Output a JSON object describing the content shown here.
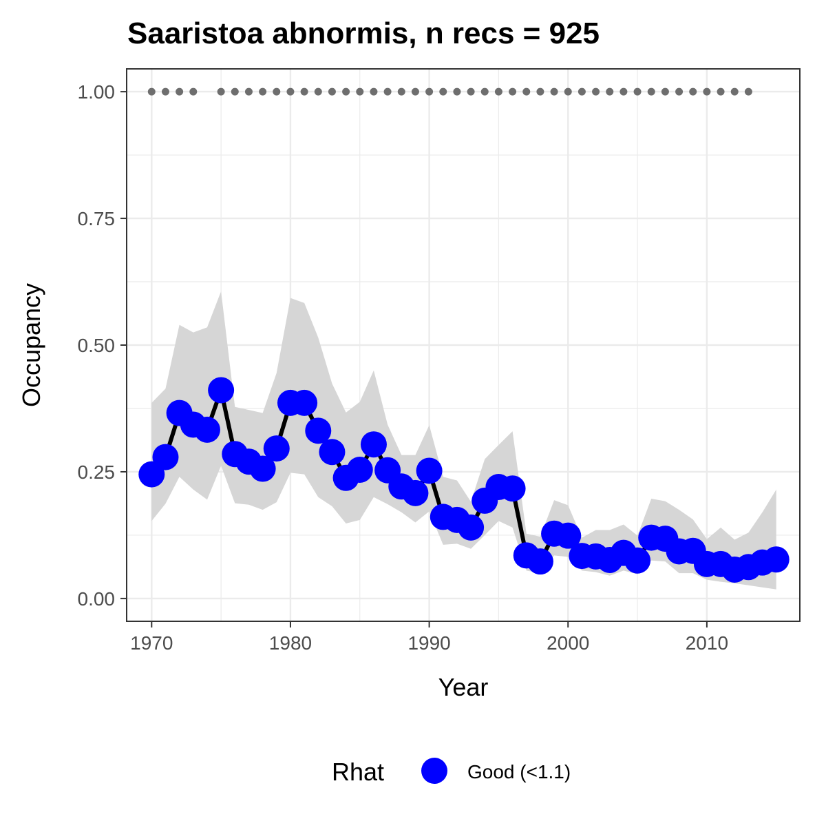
{
  "chart_data": {
    "type": "line",
    "title": "Saaristoa abnormis, n recs = 925",
    "xlabel": "Year",
    "ylabel": "Occupancy",
    "xlim": [
      1968.2,
      2016.7
    ],
    "ylim": [
      -0.045,
      1.045
    ],
    "x_ticks": [
      1970,
      1980,
      1990,
      2000,
      2010
    ],
    "x_tick_labels": [
      "1970",
      "1980",
      "1990",
      "2000",
      "2010"
    ],
    "y_ticks": [
      0,
      0.25,
      0.5,
      0.75,
      1.0
    ],
    "y_tick_labels": [
      "0.00",
      "0.25",
      "0.50",
      "0.75",
      "1.00"
    ],
    "grid": true,
    "legend": {
      "position": "bottom",
      "title": "Rhat",
      "entries": [
        {
          "label": "Good (<1.1)",
          "color": "#0000ff"
        }
      ]
    },
    "colors": {
      "points": "#0000ff",
      "line": "#000000",
      "ribbon": "#d6d6d6",
      "record_dots": "#6e6e6e",
      "grid": "#ebebeb",
      "panel_border": "#333333"
    },
    "series": [
      {
        "name": "Good (<1.1)",
        "x": [
          1970,
          1971,
          1972,
          1973,
          1974,
          1975,
          1976,
          1977,
          1978,
          1979,
          1980,
          1981,
          1982,
          1983,
          1984,
          1985,
          1986,
          1987,
          1988,
          1989,
          1990,
          1991,
          1992,
          1993,
          1994,
          1995,
          1996,
          1997,
          1998,
          1999,
          2000,
          2001,
          2002,
          2003,
          2004,
          2005,
          2006,
          2007,
          2008,
          2009,
          2010,
          2011,
          2012,
          2013,
          2014,
          2015
        ],
        "y": [
          0.245,
          0.279,
          0.366,
          0.343,
          0.333,
          0.411,
          0.285,
          0.27,
          0.256,
          0.296,
          0.386,
          0.386,
          0.331,
          0.289,
          0.238,
          0.254,
          0.304,
          0.253,
          0.221,
          0.208,
          0.252,
          0.161,
          0.155,
          0.14,
          0.193,
          0.22,
          0.217,
          0.085,
          0.073,
          0.128,
          0.124,
          0.084,
          0.083,
          0.076,
          0.09,
          0.075,
          0.12,
          0.118,
          0.093,
          0.094,
          0.068,
          0.068,
          0.057,
          0.062,
          0.071,
          0.077
        ],
        "lower": [
          0.153,
          0.187,
          0.24,
          0.215,
          0.195,
          0.262,
          0.188,
          0.185,
          0.175,
          0.19,
          0.248,
          0.245,
          0.2,
          0.182,
          0.148,
          0.155,
          0.2,
          0.186,
          0.17,
          0.15,
          0.172,
          0.106,
          0.108,
          0.098,
          0.125,
          0.153,
          0.14,
          0.055,
          0.05,
          0.085,
          0.082,
          0.055,
          0.052,
          0.045,
          0.055,
          0.048,
          0.075,
          0.073,
          0.05,
          0.05,
          0.037,
          0.033,
          0.03,
          0.026,
          0.022,
          0.018
        ],
        "upper": [
          0.386,
          0.414,
          0.54,
          0.525,
          0.535,
          0.606,
          0.378,
          0.372,
          0.366,
          0.445,
          0.593,
          0.583,
          0.515,
          0.424,
          0.367,
          0.388,
          0.45,
          0.343,
          0.283,
          0.283,
          0.342,
          0.24,
          0.233,
          0.191,
          0.275,
          0.303,
          0.33,
          0.128,
          0.122,
          0.194,
          0.184,
          0.12,
          0.135,
          0.135,
          0.146,
          0.124,
          0.197,
          0.192,
          0.175,
          0.156,
          0.117,
          0.14,
          0.116,
          0.13,
          0.17,
          0.215
        ]
      }
    ],
    "records": {
      "y": 1.0,
      "years": [
        1970,
        1971,
        1972,
        1973,
        1975,
        1976,
        1977,
        1978,
        1979,
        1980,
        1981,
        1982,
        1983,
        1984,
        1985,
        1986,
        1987,
        1988,
        1989,
        1990,
        1991,
        1992,
        1993,
        1994,
        1995,
        1996,
        1997,
        1998,
        1999,
        2000,
        2001,
        2002,
        2003,
        2004,
        2005,
        2006,
        2007,
        2008,
        2009,
        2010,
        2011,
        2012,
        2013
      ]
    }
  }
}
